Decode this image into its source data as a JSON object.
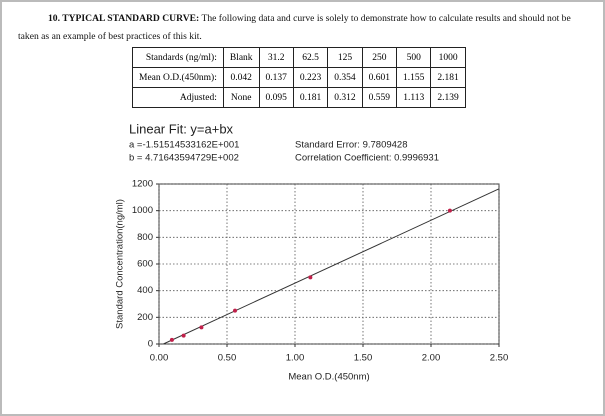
{
  "heading": {
    "label": "10. TYPICAL STANDARD CURVE:",
    "text": "The following data and curve is solely to demonstrate how to calculate results and should not be taken as an example of best practices of this kit."
  },
  "table": {
    "rows": [
      [
        "Standards (ng/ml):",
        "Blank",
        "31.2",
        "62.5",
        "125",
        "250",
        "500",
        "1000"
      ],
      [
        "Mean O.D.(450nm):",
        "0.042",
        "0.137",
        "0.223",
        "0.354",
        "0.601",
        "1.155",
        "2.181"
      ],
      [
        "Adjusted:",
        "None",
        "0.095",
        "0.181",
        "0.312",
        "0.559",
        "1.113",
        "2.139"
      ]
    ]
  },
  "chart_data": {
    "type": "scatter",
    "title": "Linear Fit: y=a+bx",
    "fit": {
      "a": {
        "value": -15.1514533162,
        "label": "a =-1.51514533162E+001"
      },
      "b": {
        "value": 471.643594729,
        "label": "b = 4.71643594729E+002"
      }
    },
    "annotations": [
      "Standard Error: 9.7809428",
      "Correlation Coefficient: 0.9996931"
    ],
    "x_label": "Mean O.D.(450nm)",
    "y_label": "Standard Concentration(ng/ml)",
    "x": [
      0.095,
      0.181,
      0.312,
      0.559,
      1.113,
      2.139
    ],
    "values": [
      31.2,
      62.5,
      125,
      250,
      500,
      1000
    ],
    "color": "#c0204a",
    "line_color": "#333333",
    "xlim": [
      0,
      2.5
    ],
    "xticks": [
      {
        "value": 0,
        "label": "0.00"
      },
      {
        "value": 0.5,
        "label": "0.50"
      },
      {
        "value": 1,
        "label": "1.00"
      },
      {
        "value": 1.5,
        "label": "1.50"
      },
      {
        "value": 2,
        "label": "2.00"
      },
      {
        "value": 2.5,
        "label": "2.50"
      }
    ],
    "ylim": [
      0,
      1200
    ],
    "yticks": [
      0,
      200,
      400,
      600,
      800,
      1000,
      1200
    ],
    "grid": true
  }
}
